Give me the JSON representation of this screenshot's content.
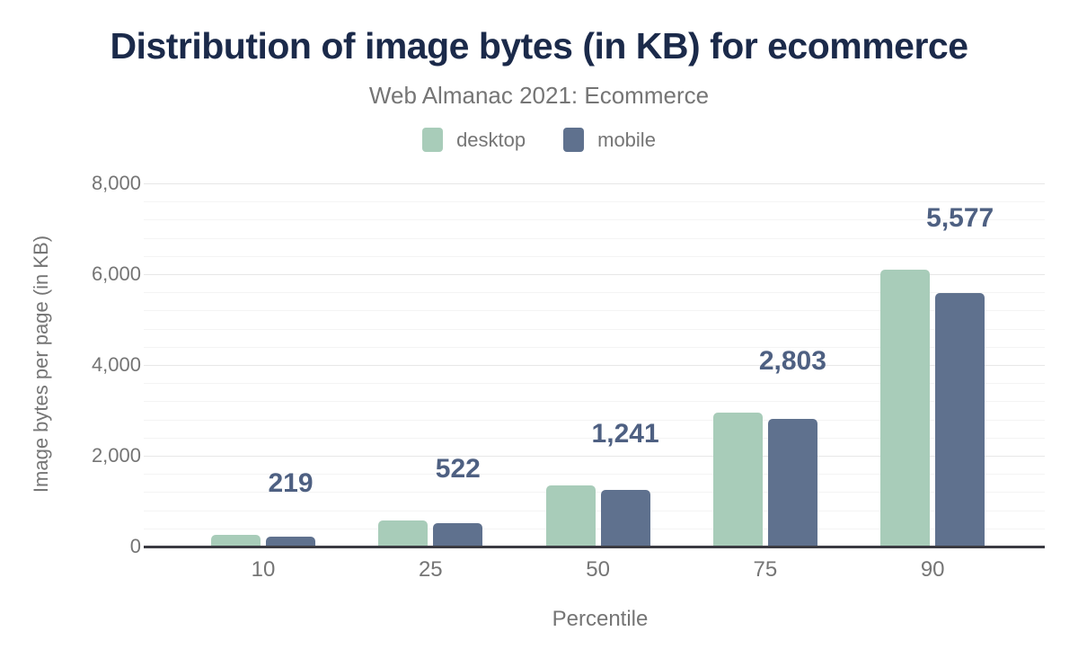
{
  "title": "Distribution of image bytes (in KB) for ecommerce",
  "subtitle": "Web Almanac 2021: Ecommerce",
  "legend": [
    {
      "label": "desktop",
      "color": "#a8ccb9"
    },
    {
      "label": "mobile",
      "color": "#5f718e"
    }
  ],
  "colors": {
    "title": "#1b2a4a",
    "muted_text": "#757575",
    "data_label": "#4e6082",
    "major_gridline": "#e7e7e7",
    "minor_gridline": "#f4f4f4",
    "axis_line": "#3b3b42",
    "background": "#ffffff"
  },
  "chart_data": {
    "type": "bar",
    "categories": [
      "10",
      "25",
      "50",
      "75",
      "90"
    ],
    "series": [
      {
        "name": "desktop",
        "color": "#a8ccb9",
        "values": [
          250,
          580,
          1340,
          2960,
          6100
        ]
      },
      {
        "name": "mobile",
        "color": "#5f718e",
        "values": [
          219,
          522,
          1241,
          2803,
          5577
        ]
      }
    ],
    "data_labels": {
      "labeled_series": "mobile",
      "values": [
        "219",
        "522",
        "1,241",
        "2,803",
        "5,577"
      ]
    },
    "title": "Distribution of image bytes (in KB) for ecommerce",
    "subtitle": "Web Almanac 2021: Ecommerce",
    "xlabel": "Percentile",
    "ylabel": "Image bytes per page (in KB)",
    "ylim": [
      0,
      8000
    ],
    "ytick_interval": 2000,
    "minor_gridline_interval": 400,
    "yticks": [
      "0",
      "2,000",
      "4,000",
      "6,000",
      "8,000"
    ],
    "grid": true,
    "legend_position": "top"
  }
}
